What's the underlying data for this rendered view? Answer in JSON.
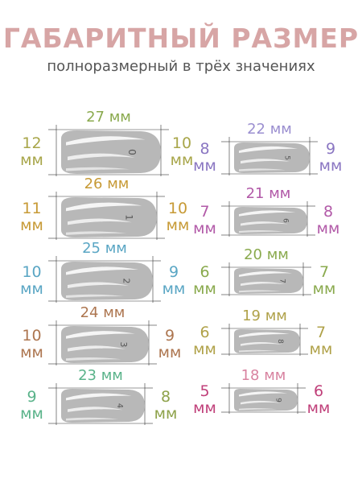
{
  "title": "ГАБАРИТНЫЙ РАЗМЕР",
  "subtitle": "полноразмерный в трёх значениях",
  "unit": "мм",
  "colors": {
    "title": "#d7a5a5",
    "subtitle": "#555555",
    "nail_fill": "#b8b8b8",
    "guide_line": "#333333"
  },
  "nails": [
    {
      "num": "0",
      "length": "27",
      "width_left": "12",
      "width_right": "10",
      "color_top": "#8aaa4e",
      "color_left": "#a8a64a",
      "color_right": "#a8a64a"
    },
    {
      "num": "1",
      "length": "26",
      "width_left": "11",
      "width_right": "10",
      "color_top": "#c79a36",
      "color_left": "#c79a36",
      "color_right": "#c79a36"
    },
    {
      "num": "2",
      "length": "25",
      "width_left": "10",
      "width_right": "9",
      "color_top": "#5aa6c4",
      "color_left": "#5aa6c4",
      "color_right": "#5aa6c4"
    },
    {
      "num": "3",
      "length": "24",
      "width_left": "10",
      "width_right": "9",
      "color_top": "#ad7650",
      "color_left": "#ad7650",
      "color_right": "#ad7650"
    },
    {
      "num": "4",
      "length": "23",
      "width_left": "9",
      "width_right": "8",
      "color_top": "#5ab38a",
      "color_left": "#5ab38a",
      "color_right": "#8ea24a"
    },
    {
      "num": "5",
      "length": "22",
      "width_left": "8",
      "width_right": "9",
      "color_top": "#9b8fd0",
      "color_left": "#8a76c2",
      "color_right": "#8a76c2"
    },
    {
      "num": "6",
      "length": "21",
      "width_left": "7",
      "width_right": "8",
      "color_top": "#b25aa8",
      "color_left": "#b25aa8",
      "color_right": "#b25aa8"
    },
    {
      "num": "7",
      "length": "20",
      "width_left": "6",
      "width_right": "7",
      "color_top": "#8aaa4e",
      "color_left": "#8aaa4e",
      "color_right": "#8aaa4e"
    },
    {
      "num": "8",
      "length": "19",
      "width_left": "6",
      "width_right": "7",
      "color_top": "#b0a24a",
      "color_left": "#b0a24a",
      "color_right": "#b0a24a"
    },
    {
      "num": "9",
      "length": "18",
      "width_left": "5",
      "width_right": "6",
      "color_top": "#d883a0",
      "color_left": "#c0407a",
      "color_right": "#c0407a"
    }
  ]
}
